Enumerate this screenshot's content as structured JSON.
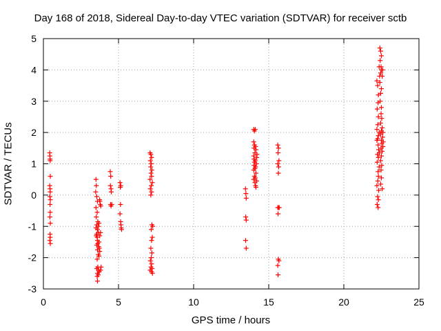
{
  "chart_data": {
    "type": "scatter",
    "title": "Day 168 of 2018, Sidereal Day-to-day VTEC variation (SDTVAR) for receiver sctb",
    "xlabel": "GPS time / hours",
    "ylabel": "SDTVAR / TECUs",
    "xlim": [
      0,
      25
    ],
    "ylim": [
      -3,
      5
    ],
    "xticks": [
      0,
      5,
      10,
      15,
      20,
      25
    ],
    "yticks": [
      -3,
      -2,
      -1,
      0,
      1,
      2,
      3,
      4,
      5
    ],
    "grid": true,
    "marker": "+",
    "color": "#ff0000",
    "series": [
      {
        "name": "SDTVAR",
        "points": [
          [
            0.42,
            1.35
          ],
          [
            0.43,
            1.25
          ],
          [
            0.44,
            1.15
          ],
          [
            0.45,
            1.1
          ],
          [
            0.46,
            0.6
          ],
          [
            0.42,
            0.3
          ],
          [
            0.44,
            0.2
          ],
          [
            0.45,
            0.1
          ],
          [
            0.43,
            -0.05
          ],
          [
            0.46,
            -0.15
          ],
          [
            0.44,
            -0.3
          ],
          [
            0.45,
            -0.55
          ],
          [
            0.43,
            -0.7
          ],
          [
            0.46,
            -0.9
          ],
          [
            0.44,
            -1.25
          ],
          [
            0.45,
            -1.35
          ],
          [
            0.43,
            -1.45
          ],
          [
            0.46,
            -1.55
          ],
          [
            3.5,
            0.5
          ],
          [
            3.52,
            0.3
          ],
          [
            3.48,
            0.1
          ],
          [
            3.55,
            -0.05
          ],
          [
            3.6,
            -0.2
          ],
          [
            3.5,
            -0.4
          ],
          [
            3.58,
            -0.55
          ],
          [
            3.52,
            -0.7
          ],
          [
            3.62,
            -0.85
          ],
          [
            3.55,
            -0.95
          ],
          [
            3.5,
            -1.05
          ],
          [
            3.6,
            -1.1
          ],
          [
            3.65,
            -1.2
          ],
          [
            3.55,
            -1.25
          ],
          [
            3.52,
            -1.3
          ],
          [
            3.58,
            -1.35
          ],
          [
            3.6,
            -1.45
          ],
          [
            3.7,
            -1.5
          ],
          [
            3.62,
            -1.55
          ],
          [
            3.55,
            -1.6
          ],
          [
            3.68,
            -1.65
          ],
          [
            3.72,
            -1.7
          ],
          [
            3.6,
            -1.75
          ],
          [
            3.75,
            -1.8
          ],
          [
            3.65,
            -1.9
          ],
          [
            3.7,
            -1.95
          ],
          [
            3.58,
            -2.05
          ],
          [
            3.62,
            -2.3
          ],
          [
            3.55,
            -2.35
          ],
          [
            3.68,
            -2.4
          ],
          [
            3.72,
            -2.45
          ],
          [
            3.6,
            -2.5
          ],
          [
            3.65,
            -2.55
          ],
          [
            3.58,
            -2.6
          ],
          [
            3.6,
            -2.75
          ],
          [
            3.75,
            -1.3
          ],
          [
            3.8,
            -1.2
          ],
          [
            3.78,
            -0.3
          ],
          [
            3.74,
            -0.15
          ],
          [
            3.76,
            -0.2
          ],
          [
            3.82,
            -0.35
          ],
          [
            3.7,
            -0.9
          ],
          [
            3.66,
            -1.0
          ],
          [
            3.84,
            -2.3
          ],
          [
            3.8,
            -2.4
          ],
          [
            4.45,
            0.75
          ],
          [
            4.48,
            0.6
          ],
          [
            4.46,
            0.3
          ],
          [
            4.5,
            0.2
          ],
          [
            4.52,
            0.1
          ],
          [
            4.47,
            -0.3
          ],
          [
            4.5,
            -0.35
          ],
          [
            4.55,
            -0.3
          ],
          [
            5.1,
            0.4
          ],
          [
            5.15,
            0.3
          ],
          [
            5.12,
            0.25
          ],
          [
            5.13,
            -0.3
          ],
          [
            5.1,
            -0.6
          ],
          [
            5.14,
            -0.85
          ],
          [
            5.16,
            -0.95
          ],
          [
            5.18,
            -1.05
          ],
          [
            5.2,
            -1.1
          ],
          [
            7.1,
            1.35
          ],
          [
            7.15,
            1.3
          ],
          [
            7.2,
            1.2
          ],
          [
            7.12,
            1.1
          ],
          [
            7.18,
            1.0
          ],
          [
            7.14,
            0.9
          ],
          [
            7.22,
            0.8
          ],
          [
            7.16,
            0.7
          ],
          [
            7.2,
            0.6
          ],
          [
            7.1,
            0.5
          ],
          [
            7.25,
            0.4
          ],
          [
            7.18,
            0.3
          ],
          [
            7.12,
            0.2
          ],
          [
            7.2,
            0.1
          ],
          [
            7.15,
            0.0
          ],
          [
            7.22,
            -0.95
          ],
          [
            7.28,
            -1.0
          ],
          [
            7.18,
            -1.1
          ],
          [
            7.25,
            -1.35
          ],
          [
            7.2,
            -1.45
          ],
          [
            7.15,
            -1.7
          ],
          [
            7.22,
            -1.85
          ],
          [
            7.18,
            -2.0
          ],
          [
            7.12,
            -2.1
          ],
          [
            7.2,
            -2.2
          ],
          [
            7.16,
            -2.3
          ],
          [
            7.24,
            -2.35
          ],
          [
            7.1,
            -2.4
          ],
          [
            7.2,
            -2.45
          ],
          [
            7.26,
            -2.5
          ],
          [
            13.45,
            0.2
          ],
          [
            13.48,
            0.05
          ],
          [
            13.5,
            -0.1
          ],
          [
            13.47,
            -0.7
          ],
          [
            13.5,
            -0.8
          ],
          [
            13.46,
            -1.45
          ],
          [
            13.5,
            -1.7
          ],
          [
            14.0,
            2.1
          ],
          [
            14.05,
            2.05
          ],
          [
            14.1,
            2.1
          ],
          [
            14.0,
            1.7
          ],
          [
            14.05,
            1.6
          ],
          [
            14.12,
            1.55
          ],
          [
            14.02,
            1.5
          ],
          [
            14.15,
            1.45
          ],
          [
            14.08,
            1.35
          ],
          [
            14.0,
            1.25
          ],
          [
            14.2,
            1.2
          ],
          [
            14.1,
            1.1
          ],
          [
            14.05,
            1.05
          ],
          [
            14.18,
            1.0
          ],
          [
            14.02,
            0.95
          ],
          [
            14.12,
            0.9
          ],
          [
            14.08,
            0.85
          ],
          [
            14.0,
            0.8
          ],
          [
            14.15,
            0.7
          ],
          [
            14.05,
            0.6
          ],
          [
            14.1,
            0.55
          ],
          [
            14.0,
            0.5
          ],
          [
            14.2,
            0.45
          ],
          [
            14.08,
            0.4
          ],
          [
            14.12,
            0.3
          ],
          [
            14.15,
            0.25
          ],
          [
            14.02,
            1.15
          ],
          [
            14.22,
            1.3
          ],
          [
            15.6,
            1.6
          ],
          [
            15.65,
            1.5
          ],
          [
            15.62,
            1.35
          ],
          [
            15.68,
            1.1
          ],
          [
            15.6,
            1.0
          ],
          [
            15.66,
            0.9
          ],
          [
            15.64,
            0.7
          ],
          [
            15.6,
            -0.4
          ],
          [
            15.66,
            -0.4
          ],
          [
            15.7,
            -0.4
          ],
          [
            15.62,
            -0.6
          ],
          [
            15.64,
            -2.05
          ],
          [
            15.68,
            -2.1
          ],
          [
            15.6,
            -2.25
          ],
          [
            15.62,
            -2.55
          ],
          [
            22.2,
            3.65
          ],
          [
            22.25,
            3.5
          ],
          [
            22.3,
            3.2
          ],
          [
            22.28,
            2.95
          ],
          [
            22.22,
            2.75
          ],
          [
            22.3,
            2.5
          ],
          [
            22.26,
            2.25
          ],
          [
            22.2,
            2.1
          ],
          [
            22.35,
            2.0
          ],
          [
            22.3,
            1.9
          ],
          [
            22.25,
            1.8
          ],
          [
            22.2,
            1.75
          ],
          [
            22.28,
            1.6
          ],
          [
            22.32,
            1.45
          ],
          [
            22.24,
            1.3
          ],
          [
            22.3,
            1.2
          ],
          [
            22.22,
            1.05
          ],
          [
            22.35,
            0.9
          ],
          [
            22.28,
            0.75
          ],
          [
            22.3,
            0.6
          ],
          [
            22.26,
            0.45
          ],
          [
            22.2,
            0.3
          ],
          [
            22.32,
            0.15
          ],
          [
            22.25,
            -0.05
          ],
          [
            22.3,
            -0.15
          ],
          [
            22.22,
            -0.3
          ],
          [
            22.28,
            -0.4
          ],
          [
            22.4,
            4.7
          ],
          [
            22.45,
            4.6
          ],
          [
            22.5,
            4.45
          ],
          [
            22.42,
            4.3
          ],
          [
            22.48,
            4.1
          ],
          [
            22.5,
            4.0
          ],
          [
            22.45,
            3.9
          ],
          [
            22.55,
            3.8
          ],
          [
            22.4,
            3.6
          ],
          [
            22.5,
            3.4
          ],
          [
            22.45,
            3.25
          ],
          [
            22.42,
            3.0
          ],
          [
            22.5,
            2.8
          ],
          [
            22.48,
            2.6
          ],
          [
            22.52,
            2.45
          ],
          [
            22.45,
            2.3
          ],
          [
            22.55,
            2.15
          ],
          [
            22.5,
            2.05
          ],
          [
            22.45,
            1.95
          ],
          [
            22.58,
            1.85
          ],
          [
            22.5,
            1.75
          ],
          [
            22.52,
            1.65
          ],
          [
            22.48,
            1.5
          ],
          [
            22.55,
            1.4
          ],
          [
            22.5,
            1.25
          ],
          [
            22.45,
            1.1
          ],
          [
            22.52,
            0.95
          ],
          [
            22.48,
            0.8
          ],
          [
            22.5,
            0.55
          ],
          [
            22.45,
            0.35
          ],
          [
            22.55,
            0.2
          ],
          [
            22.6,
            1.55
          ],
          [
            22.58,
            4.0
          ],
          [
            22.35,
            4.1
          ],
          [
            22.38,
            3.8
          ],
          [
            22.6,
            2.0
          ],
          [
            22.62,
            1.7
          ],
          [
            22.36,
            1.35
          ]
        ]
      }
    ]
  }
}
